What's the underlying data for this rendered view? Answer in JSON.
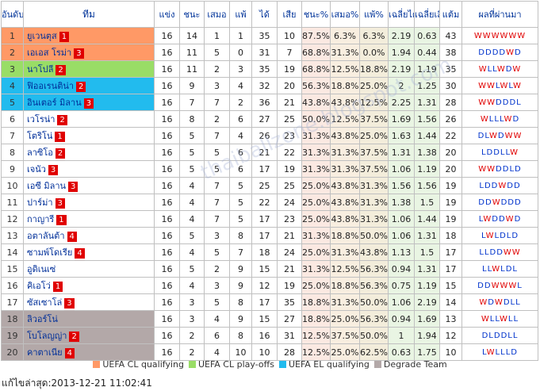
{
  "headers": {
    "rank": "อันดับ",
    "team": "ทีม",
    "played": "แข่ง",
    "won": "ชนะ",
    "drawn": "เสมอ",
    "lost": "แพ้",
    "goals_for": "ได้",
    "goals_against": "เสีย",
    "win_pct": "ชนะ%",
    "draw_pct": "เสมอ%",
    "loss_pct": "แพ้%",
    "avg_for": "เฉลี่ยได้",
    "avg_against": "เฉลี่ยเสีย",
    "points": "แต้ม",
    "form": "ผลที่ผ่านมา"
  },
  "colors": {
    "ucl": "#ff9966",
    "playoff": "#99dd66",
    "uel": "#22bbee",
    "degrade": "#b3a8a8",
    "badge": "#e00000",
    "form_win": "#e00000",
    "form_other": "#0033cc"
  },
  "rows": [
    {
      "rank": "1",
      "team": "ยูเวนตุส",
      "badge": "1",
      "played": "16",
      "won": "14",
      "drawn": "1",
      "lost": "1",
      "gf": "35",
      "ga": "10",
      "win_pct": "87.5%",
      "draw_pct": "6.3%",
      "loss_pct": "6.3%",
      "avg_for": "2.19",
      "avg_against": "0.63",
      "points": "43",
      "form": "WWWWWW",
      "category": "cl"
    },
    {
      "rank": "2",
      "team": "เอเอส โรม่า",
      "badge": "3",
      "played": "16",
      "won": "11",
      "drawn": "5",
      "lost": "0",
      "gf": "31",
      "ga": "7",
      "win_pct": "68.8%",
      "draw_pct": "31.3%",
      "loss_pct": "0.0%",
      "avg_for": "1.94",
      "avg_against": "0.44",
      "points": "38",
      "form": "DDDDWD",
      "category": "cl"
    },
    {
      "rank": "3",
      "team": "นาโปลี",
      "badge": "2",
      "played": "16",
      "won": "11",
      "drawn": "2",
      "lost": "3",
      "gf": "35",
      "ga": "19",
      "win_pct": "68.8%",
      "draw_pct": "12.5%",
      "loss_pct": "18.8%",
      "avg_for": "2.19",
      "avg_against": "1.19",
      "points": "35",
      "form": "WLLWDW",
      "category": "po"
    },
    {
      "rank": "4",
      "team": "ฟิออเรนติน่า",
      "badge": "2",
      "played": "16",
      "won": "9",
      "drawn": "3",
      "lost": "4",
      "gf": "32",
      "ga": "20",
      "win_pct": "56.3%",
      "draw_pct": "18.8%",
      "loss_pct": "25.0%",
      "avg_for": "2",
      "avg_against": "1.25",
      "points": "30",
      "form": "WWLWLW",
      "category": "el"
    },
    {
      "rank": "5",
      "team": "อินเตอร์ มิลาน",
      "badge": "3",
      "played": "16",
      "won": "7",
      "drawn": "7",
      "lost": "2",
      "gf": "36",
      "ga": "21",
      "win_pct": "43.8%",
      "draw_pct": "43.8%",
      "loss_pct": "12.5%",
      "avg_for": "2.25",
      "avg_against": "1.31",
      "points": "28",
      "form": "WWDDDL",
      "category": "el"
    },
    {
      "rank": "6",
      "team": "เวโรน่า",
      "badge": "2",
      "played": "16",
      "won": "8",
      "drawn": "2",
      "lost": "6",
      "gf": "27",
      "ga": "25",
      "win_pct": "50.0%",
      "draw_pct": "12.5%",
      "loss_pct": "37.5%",
      "avg_for": "1.69",
      "avg_against": "1.56",
      "points": "26",
      "form": "WLLLWD",
      "category": "none"
    },
    {
      "rank": "7",
      "team": "โตริโน่",
      "badge": "1",
      "played": "16",
      "won": "5",
      "drawn": "7",
      "lost": "4",
      "gf": "26",
      "ga": "23",
      "win_pct": "31.3%",
      "draw_pct": "43.8%",
      "loss_pct": "25.0%",
      "avg_for": "1.63",
      "avg_against": "1.44",
      "points": "22",
      "form": "DLWDWW",
      "category": "none"
    },
    {
      "rank": "8",
      "team": "ลาซิโอ",
      "badge": "2",
      "played": "16",
      "won": "5",
      "drawn": "5",
      "lost": "6",
      "gf": "21",
      "ga": "22",
      "win_pct": "31.3%",
      "draw_pct": "31.3%",
      "loss_pct": "37.5%",
      "avg_for": "1.31",
      "avg_against": "1.38",
      "points": "20",
      "form": "LDDLLW",
      "category": "none"
    },
    {
      "rank": "9",
      "team": "เจนัว",
      "badge": "3",
      "played": "16",
      "won": "5",
      "drawn": "5",
      "lost": "6",
      "gf": "17",
      "ga": "19",
      "win_pct": "31.3%",
      "draw_pct": "31.3%",
      "loss_pct": "37.5%",
      "avg_for": "1.06",
      "avg_against": "1.19",
      "points": "20",
      "form": "WWDDLD",
      "category": "none"
    },
    {
      "rank": "10",
      "team": "เอซี มิลาน",
      "badge": "3",
      "played": "16",
      "won": "4",
      "drawn": "7",
      "lost": "5",
      "gf": "25",
      "ga": "25",
      "win_pct": "25.0%",
      "draw_pct": "43.8%",
      "loss_pct": "31.3%",
      "avg_for": "1.56",
      "avg_against": "1.56",
      "points": "19",
      "form": "LDDWDD",
      "category": "none"
    },
    {
      "rank": "11",
      "team": "ปาร์ม่า",
      "badge": "3",
      "played": "16",
      "won": "4",
      "drawn": "7",
      "lost": "5",
      "gf": "22",
      "ga": "24",
      "win_pct": "25.0%",
      "draw_pct": "43.8%",
      "loss_pct": "31.3%",
      "avg_for": "1.38",
      "avg_against": "1.5",
      "points": "19",
      "form": "DDWDDD",
      "category": "none"
    },
    {
      "rank": "12",
      "team": "กาญารี",
      "badge": "1",
      "played": "16",
      "won": "4",
      "drawn": "7",
      "lost": "5",
      "gf": "17",
      "ga": "23",
      "win_pct": "25.0%",
      "draw_pct": "43.8%",
      "loss_pct": "31.3%",
      "avg_for": "1.06",
      "avg_against": "1.44",
      "points": "19",
      "form": "LWDDWD",
      "category": "none"
    },
    {
      "rank": "13",
      "team": "อตาลันต้า",
      "badge": "4",
      "played": "16",
      "won": "5",
      "drawn": "3",
      "lost": "8",
      "gf": "17",
      "ga": "21",
      "win_pct": "31.3%",
      "draw_pct": "18.8%",
      "loss_pct": "50.0%",
      "avg_for": "1.06",
      "avg_against": "1.31",
      "points": "18",
      "form": "LWLDLD",
      "category": "none"
    },
    {
      "rank": "14",
      "team": "ซามพ์โดเรีย",
      "badge": "4",
      "played": "16",
      "won": "4",
      "drawn": "5",
      "lost": "7",
      "gf": "18",
      "ga": "24",
      "win_pct": "25.0%",
      "draw_pct": "31.3%",
      "loss_pct": "43.8%",
      "avg_for": "1.13",
      "avg_against": "1.5",
      "points": "17",
      "form": "LLDDWW",
      "category": "none"
    },
    {
      "rank": "15",
      "team": "อูดิเนเซ่",
      "badge": "",
      "played": "16",
      "won": "5",
      "drawn": "2",
      "lost": "9",
      "gf": "15",
      "ga": "21",
      "win_pct": "31.3%",
      "draw_pct": "12.5%",
      "loss_pct": "56.3%",
      "avg_for": "0.94",
      "avg_against": "1.31",
      "points": "17",
      "form": "LLWLDL",
      "category": "none"
    },
    {
      "rank": "16",
      "team": "คิเอโว่",
      "badge": "1",
      "played": "16",
      "won": "4",
      "drawn": "3",
      "lost": "9",
      "gf": "12",
      "ga": "19",
      "win_pct": "25.0%",
      "draw_pct": "18.8%",
      "loss_pct": "56.3%",
      "avg_for": "0.75",
      "avg_against": "1.19",
      "points": "15",
      "form": "DDWWWL",
      "category": "none"
    },
    {
      "rank": "17",
      "team": "ซัสเซาโล่",
      "badge": "3",
      "played": "16",
      "won": "3",
      "drawn": "5",
      "lost": "8",
      "gf": "17",
      "ga": "35",
      "win_pct": "18.8%",
      "draw_pct": "31.3%",
      "loss_pct": "50.0%",
      "avg_for": "1.06",
      "avg_against": "2.19",
      "points": "14",
      "form": "WDWDLL",
      "category": "none"
    },
    {
      "rank": "18",
      "team": "ลิวอร์โน่",
      "badge": "",
      "played": "16",
      "won": "3",
      "drawn": "4",
      "lost": "9",
      "gf": "15",
      "ga": "27",
      "win_pct": "18.8%",
      "draw_pct": "25.0%",
      "loss_pct": "56.3%",
      "avg_for": "0.94",
      "avg_against": "1.69",
      "points": "13",
      "form": "WLLWLL",
      "category": "dg"
    },
    {
      "rank": "19",
      "team": "โบโลญญ่า",
      "badge": "2",
      "played": "16",
      "won": "2",
      "drawn": "6",
      "lost": "8",
      "gf": "16",
      "ga": "31",
      "win_pct": "12.5%",
      "draw_pct": "37.5%",
      "loss_pct": "50.0%",
      "avg_for": "1",
      "avg_against": "1.94",
      "points": "12",
      "form": "DLDDLL",
      "category": "dg"
    },
    {
      "rank": "20",
      "team": "คาตาเนีย",
      "badge": "4",
      "played": "16",
      "won": "2",
      "drawn": "4",
      "lost": "10",
      "gf": "10",
      "ga": "28",
      "win_pct": "12.5%",
      "draw_pct": "25.0%",
      "loss_pct": "62.5%",
      "avg_for": "0.63",
      "avg_against": "1.75",
      "points": "10",
      "form": "LWLLLD",
      "category": "dg"
    }
  ],
  "legend": [
    {
      "key": "cl",
      "label": "UEFA CL qualifying",
      "color": "#ff9966"
    },
    {
      "key": "po",
      "label": "UEFA CL play-offs",
      "color": "#99dd66"
    },
    {
      "key": "el",
      "label": "UEFA EL qualifying",
      "color": "#22bbee"
    },
    {
      "key": "dg",
      "label": "Degrade Team",
      "color": "#b3a8a8"
    }
  ],
  "watermark": "thaiballzone.blogspot.com",
  "footer": "แก้ไขล่าสุด:2013-12-21 11:02:41"
}
